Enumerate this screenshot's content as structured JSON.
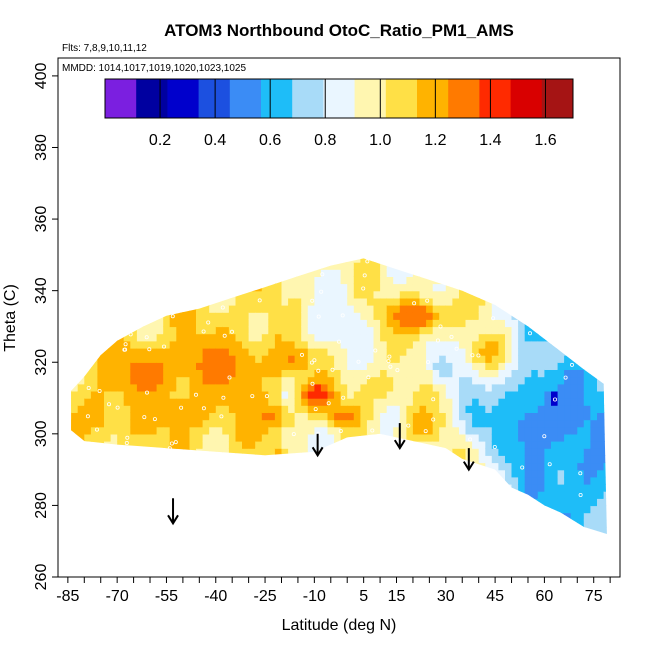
{
  "chart_data": {
    "type": "heatmap",
    "title": "ATOM3 Northbound OtoC_Ratio_PM1_AMS",
    "annotations": {
      "flights": "Flts: 7,8,9,10,11,12",
      "dates": "MMDD: 1014,1017,1019,1020,1023,1025"
    },
    "xlabel": "Latitude (deg N)",
    "ylabel": "Theta (C)",
    "xlim": [
      -88,
      83
    ],
    "ylim": [
      260,
      405
    ],
    "x_ticks": [
      -85,
      -70,
      -55,
      -40,
      -25,
      -10,
      5,
      15,
      30,
      45,
      60,
      75
    ],
    "x_minor_step": 5,
    "y_ticks": [
      260,
      280,
      300,
      320,
      340,
      360,
      380,
      400
    ],
    "colorbar": {
      "range": [
        0,
        1.7
      ],
      "ticks": [
        "0.2",
        "0.4",
        "0.6",
        "0.8",
        "1.0",
        "1.2",
        "1.4",
        "1.6"
      ],
      "colors": [
        "#7b1fe0",
        "#0000a0",
        "#0000cc",
        "#1c50e0",
        "#3b8cf5",
        "#1ebdf8",
        "#a8dbf8",
        "#eaf6ff",
        "#fff6b0",
        "#ffe046",
        "#ffb300",
        "#ff7a00",
        "#ff2a00",
        "#d90000",
        "#a51414"
      ]
    },
    "region": {
      "upper_boundary": [
        [
          -84,
          312
        ],
        [
          -80,
          316
        ],
        [
          -75,
          322
        ],
        [
          -70,
          326
        ],
        [
          -62,
          330
        ],
        [
          -55,
          333
        ],
        [
          -45,
          335
        ],
        [
          -35,
          338
        ],
        [
          -25,
          341
        ],
        [
          -15,
          344
        ],
        [
          -5,
          347
        ],
        [
          5,
          349
        ],
        [
          15,
          346
        ],
        [
          25,
          343
        ],
        [
          35,
          340
        ],
        [
          45,
          336
        ],
        [
          55,
          330
        ],
        [
          65,
          323
        ],
        [
          72,
          318
        ],
        [
          78,
          314
        ]
      ],
      "lower_boundary": [
        [
          -84,
          301
        ],
        [
          -80,
          298
        ],
        [
          -70,
          297
        ],
        [
          -55,
          296
        ],
        [
          -40,
          295
        ],
        [
          -25,
          294
        ],
        [
          -10,
          295
        ],
        [
          0,
          299
        ],
        [
          10,
          300
        ],
        [
          20,
          298
        ],
        [
          30,
          296
        ],
        [
          35,
          293
        ],
        [
          45,
          290
        ],
        [
          50,
          285
        ],
        [
          55,
          283
        ],
        [
          60,
          280
        ],
        [
          65,
          278
        ],
        [
          72,
          274
        ],
        [
          79,
          272
        ]
      ]
    },
    "features": [
      {
        "x": -62,
        "y": 316,
        "rx": 10,
        "ry": 7,
        "value": 1.3
      },
      {
        "x": -40,
        "y": 318,
        "rx": 12,
        "ry": 8,
        "value": 1.3
      },
      {
        "x": -18,
        "y": 320,
        "rx": 8,
        "ry": 5,
        "value": 1.25
      },
      {
        "x": -52,
        "y": 305,
        "rx": 12,
        "ry": 5,
        "value": 1.22
      },
      {
        "x": -78,
        "y": 305,
        "rx": 7,
        "ry": 8,
        "value": 1.18
      },
      {
        "x": -25,
        "y": 304,
        "rx": 8,
        "ry": 4,
        "value": 1.25
      },
      {
        "x": -10,
        "y": 310,
        "rx": 6,
        "ry": 4,
        "value": 1.45
      },
      {
        "x": -2,
        "y": 304,
        "rx": 5,
        "ry": 3,
        "value": 1.35
      },
      {
        "x": 8,
        "y": 312,
        "rx": 7,
        "ry": 5,
        "value": 1.1
      },
      {
        "x": 20,
        "y": 332,
        "rx": 10,
        "ry": 5,
        "value": 1.35
      },
      {
        "x": 22,
        "y": 302,
        "rx": 6,
        "ry": 6,
        "value": 1.2
      },
      {
        "x": 28,
        "y": 318,
        "rx": 5,
        "ry": 6,
        "value": 0.75
      },
      {
        "x": -5,
        "y": 330,
        "rx": 8,
        "ry": 6,
        "value": 0.8
      },
      {
        "x": 42,
        "y": 322,
        "rx": 6,
        "ry": 5,
        "value": 1.2
      },
      {
        "x": 38,
        "y": 305,
        "rx": 6,
        "ry": 8,
        "value": 0.65
      },
      {
        "x": 55,
        "y": 300,
        "rx": 12,
        "ry": 12,
        "value": 0.55
      },
      {
        "x": 65,
        "y": 305,
        "rx": 8,
        "ry": 8,
        "value": 0.5
      },
      {
        "x": 72,
        "y": 290,
        "rx": 6,
        "ry": 10,
        "value": 0.55
      },
      {
        "x": 60,
        "y": 322,
        "rx": 8,
        "ry": 5,
        "value": 0.75
      },
      {
        "x": 62,
        "y": 309,
        "rx": 1.5,
        "ry": 1.5,
        "value": 0.15
      }
    ],
    "baseline_value": 0.95,
    "arrows": [
      {
        "x": -53,
        "y_top": 282,
        "y_bottom": 275
      },
      {
        "x": -9,
        "y_top": 300,
        "y_bottom": 294
      },
      {
        "x": 16,
        "y_top": 303,
        "y_bottom": 296
      },
      {
        "x": 37,
        "y_top": 296,
        "y_bottom": 290
      }
    ]
  }
}
